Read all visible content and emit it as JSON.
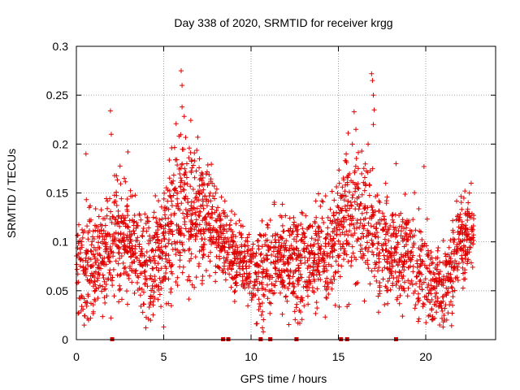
{
  "chart_data": {
    "type": "scatter",
    "title": "Day 338 of 2020, SRMTID for receiver krgg",
    "xlabel": "GPS time / hours",
    "ylabel": "SRMTID / TECUs",
    "xlim": [
      0,
      24
    ],
    "ylim": [
      0,
      0.3
    ],
    "grid": true,
    "marker": "+",
    "series_color": "#e00000",
    "x_ticks": [
      0,
      5,
      10,
      15,
      20
    ],
    "x_tick_labels": [
      "0",
      "5",
      "10",
      "15",
      "20"
    ],
    "y_ticks": [
      0,
      0.05,
      0.1,
      0.15,
      0.2,
      0.25,
      0.3
    ],
    "y_tick_labels": [
      "0",
      "0.05",
      "0.1",
      "0.15",
      "0.2",
      "0.25",
      "0.3"
    ],
    "zero_markers_x": [
      2.05,
      8.4,
      8.7,
      10.55,
      11.1,
      12.6,
      15.15,
      15.5,
      18.3
    ],
    "trend": {
      "x": [
        0,
        0.5,
        1,
        1.5,
        2,
        2.5,
        3,
        3.5,
        4,
        4.5,
        5,
        5.5,
        6,
        6.5,
        7,
        7.5,
        8,
        8.5,
        9,
        9.5,
        10,
        10.5,
        11,
        11.5,
        12,
        12.5,
        13,
        13.5,
        14,
        14.5,
        15,
        15.5,
        16,
        16.5,
        17,
        17.5,
        18,
        18.5,
        19,
        19.5,
        20,
        20.5,
        21,
        21.5,
        22,
        22.5
      ],
      "y": [
        0.085,
        0.07,
        0.075,
        0.085,
        0.1,
        0.105,
        0.095,
        0.09,
        0.07,
        0.08,
        0.1,
        0.12,
        0.14,
        0.13,
        0.12,
        0.13,
        0.11,
        0.1,
        0.085,
        0.08,
        0.075,
        0.07,
        0.075,
        0.08,
        0.08,
        0.075,
        0.075,
        0.085,
        0.09,
        0.085,
        0.11,
        0.13,
        0.13,
        0.12,
        0.11,
        0.1,
        0.09,
        0.085,
        0.09,
        0.075,
        0.065,
        0.055,
        0.05,
        0.07,
        0.1,
        0.11
      ],
      "spread": [
        0.025,
        0.035,
        0.03,
        0.025,
        0.03,
        0.03,
        0.03,
        0.025,
        0.03,
        0.03,
        0.03,
        0.035,
        0.04,
        0.035,
        0.03,
        0.03,
        0.025,
        0.02,
        0.02,
        0.02,
        0.02,
        0.025,
        0.025,
        0.025,
        0.025,
        0.025,
        0.025,
        0.025,
        0.025,
        0.025,
        0.03,
        0.035,
        0.035,
        0.03,
        0.03,
        0.03,
        0.025,
        0.025,
        0.025,
        0.025,
        0.025,
        0.02,
        0.02,
        0.025,
        0.025,
        0.02
      ]
    },
    "peaks": [
      {
        "x": 0.55,
        "y": 0.19
      },
      {
        "x": 1.95,
        "y": 0.234
      },
      {
        "x": 2.0,
        "y": 0.21
      },
      {
        "x": 2.95,
        "y": 0.192
      },
      {
        "x": 4.7,
        "y": 0.142
      },
      {
        "x": 6.0,
        "y": 0.275
      },
      {
        "x": 6.05,
        "y": 0.26
      },
      {
        "x": 6.05,
        "y": 0.238
      },
      {
        "x": 6.95,
        "y": 0.207
      },
      {
        "x": 7.05,
        "y": 0.185
      },
      {
        "x": 10.6,
        "y": 0.025
      },
      {
        "x": 10.65,
        "y": 0.012
      },
      {
        "x": 10.7,
        "y": 0.008
      },
      {
        "x": 15.9,
        "y": 0.233
      },
      {
        "x": 15.8,
        "y": 0.2
      },
      {
        "x": 16.0,
        "y": 0.215
      },
      {
        "x": 16.7,
        "y": 0.2
      },
      {
        "x": 16.9,
        "y": 0.272
      },
      {
        "x": 16.95,
        "y": 0.265
      },
      {
        "x": 17.0,
        "y": 0.25
      },
      {
        "x": 17.05,
        "y": 0.235
      },
      {
        "x": 17.0,
        "y": 0.22
      },
      {
        "x": 18.3,
        "y": 0.18
      },
      {
        "x": 19.9,
        "y": 0.177
      },
      {
        "x": 21.2,
        "y": 0.02
      },
      {
        "x": 22.6,
        "y": 0.16
      },
      {
        "x": 22.5,
        "y": 0.15
      },
      {
        "x": 17.3,
        "y": 0.028
      },
      {
        "x": 0.7,
        "y": 0.02
      },
      {
        "x": 5.0,
        "y": 0.013
      }
    ]
  }
}
